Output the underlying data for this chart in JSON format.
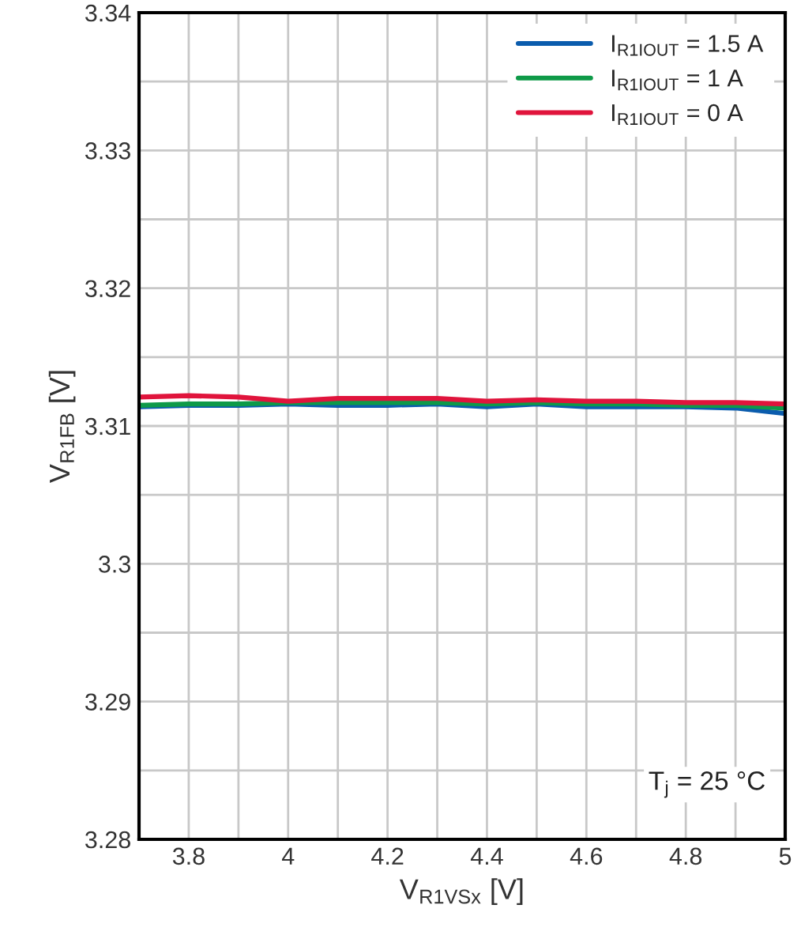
{
  "chart_data": {
    "type": "line",
    "xlabel": "V$_{R1VSx}$ [V]",
    "ylabel": "V$_{R1FB}$ [V]",
    "x": [
      3.7,
      3.8,
      3.9,
      4.0,
      4.1,
      4.2,
      4.3,
      4.4,
      4.5,
      4.6,
      4.7,
      4.8,
      4.9,
      5.0
    ],
    "series": [
      {
        "name": "I$_{R1IOUT}$ = 1.5 A",
        "color": "#0b5cad",
        "values": [
          3.3114,
          3.3115,
          3.3115,
          3.3116,
          3.3115,
          3.3115,
          3.3116,
          3.3114,
          3.3116,
          3.3114,
          3.3114,
          3.3114,
          3.3113,
          3.3109
        ]
      },
      {
        "name": "I$_{R1IOUT}$ = 1 A",
        "color": "#0e9a48",
        "values": [
          3.3115,
          3.3116,
          3.3116,
          3.3117,
          3.3117,
          3.3117,
          3.3117,
          3.3116,
          3.3117,
          3.3116,
          3.3116,
          3.3115,
          3.3115,
          3.3113
        ]
      },
      {
        "name": "I$_{R1IOUT}$ = 0 A",
        "color": "#e0143c",
        "values": [
          3.3121,
          3.3122,
          3.3121,
          3.3118,
          3.312,
          3.312,
          3.312,
          3.3118,
          3.3119,
          3.3118,
          3.3118,
          3.3117,
          3.3117,
          3.3116
        ]
      }
    ],
    "xlim": [
      3.7,
      5.0
    ],
    "xticks": [
      {
        "value": 3.7,
        "label": null
      },
      3.8,
      {
        "value": 3.9,
        "label": null
      },
      4,
      {
        "value": 4.1,
        "label": null
      },
      4.2,
      {
        "value": 4.3,
        "label": null
      },
      4.4,
      {
        "value": 4.5,
        "label": null
      },
      4.6,
      {
        "value": 4.7,
        "label": null
      },
      4.8,
      {
        "value": 4.9,
        "label": null
      },
      5
    ],
    "ylim": [
      3.28,
      3.34
    ],
    "yticks": [
      3.28,
      {
        "value": 3.285,
        "label": null
      },
      3.29,
      {
        "value": 3.295,
        "label": null
      },
      3.3,
      {
        "value": 3.305,
        "label": null
      },
      3.31,
      {
        "value": 3.315,
        "label": null
      },
      3.32,
      {
        "value": 3.325,
        "label": null
      },
      3.33,
      {
        "value": 3.335,
        "label": null
      },
      3.34
    ],
    "grid": true,
    "legend": "top right",
    "line_style": "solid",
    "annotations": [
      "T$_{j}$ = 25 °C"
    ]
  }
}
